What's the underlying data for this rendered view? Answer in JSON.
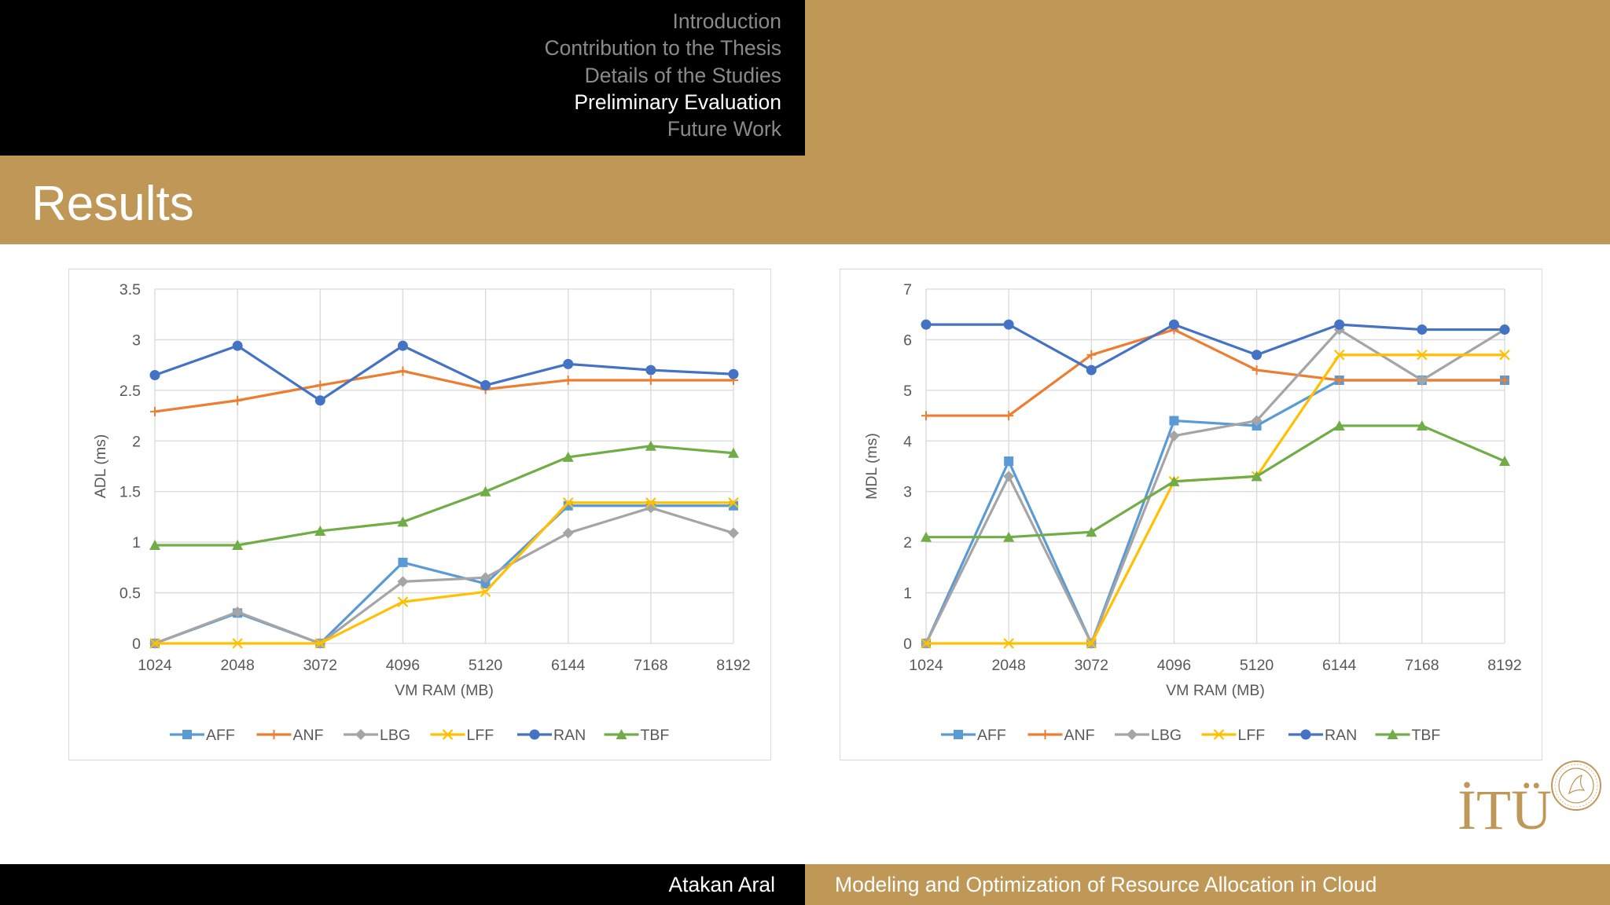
{
  "nav": {
    "items": [
      {
        "label": "Introduction",
        "active": false
      },
      {
        "label": "Contribution to the Thesis",
        "active": false
      },
      {
        "label": "Details of the Studies",
        "active": false
      },
      {
        "label": "Preliminary Evaluation",
        "active": true
      },
      {
        "label": "Future Work",
        "active": false
      }
    ]
  },
  "slide": {
    "title": "Results"
  },
  "footer": {
    "author": "Atakan Aral",
    "talk_title": "Modeling and Optimization of Resource Allocation in Cloud"
  },
  "logo": {
    "text": "İTÜ"
  },
  "colors": {
    "gold": "#bf9858",
    "AFF": "#5b9bd5",
    "ANF": "#ed7d31",
    "LBG": "#a5a5a5",
    "LFF": "#ffc000",
    "RAN": "#4472c4",
    "TBF": "#70ad47"
  },
  "chart_data": [
    {
      "type": "line",
      "title": "",
      "xlabel": "VM RAM (MB)",
      "ylabel": "ADL (ms)",
      "ylim": [
        0,
        3.5
      ],
      "yticks": [
        "0",
        "0.5",
        "1",
        "1.5",
        "2",
        "2.5",
        "3",
        "3.5"
      ],
      "x": [
        "1024",
        "2048",
        "3072",
        "4096",
        "5120",
        "6144",
        "7168",
        "8192"
      ],
      "legend_position": "bottom",
      "series": [
        {
          "name": "AFF",
          "marker": "square",
          "values": [
            0,
            0.3,
            0,
            0.8,
            0.59,
            1.36,
            1.36,
            1.36
          ]
        },
        {
          "name": "ANF",
          "marker": "plus",
          "values": [
            2.29,
            2.4,
            2.55,
            2.69,
            2.51,
            2.6,
            2.6,
            2.6
          ]
        },
        {
          "name": "LBG",
          "marker": "diamond",
          "values": [
            0,
            0.31,
            0,
            0.61,
            0.65,
            1.09,
            1.34,
            1.09
          ]
        },
        {
          "name": "LFF",
          "marker": "x",
          "values": [
            0,
            0,
            0,
            0.41,
            0.51,
            1.39,
            1.39,
            1.39
          ]
        },
        {
          "name": "RAN",
          "marker": "circle",
          "values": [
            2.65,
            2.94,
            2.4,
            2.94,
            2.55,
            2.76,
            2.7,
            2.66
          ]
        },
        {
          "name": "TBF",
          "marker": "triangle",
          "values": [
            0.97,
            0.97,
            1.11,
            1.2,
            1.5,
            1.84,
            1.95,
            1.88
          ]
        }
      ]
    },
    {
      "type": "line",
      "title": "",
      "xlabel": "VM RAM (MB)",
      "ylabel": "MDL (ms)",
      "ylim": [
        0,
        7
      ],
      "yticks": [
        "0",
        "1",
        "2",
        "3",
        "4",
        "5",
        "6",
        "7"
      ],
      "x": [
        "1024",
        "2048",
        "3072",
        "4096",
        "5120",
        "6144",
        "7168",
        "8192"
      ],
      "legend_position": "bottom",
      "series": [
        {
          "name": "AFF",
          "marker": "square",
          "values": [
            0,
            3.6,
            0,
            4.4,
            4.3,
            5.2,
            5.2,
            5.2
          ]
        },
        {
          "name": "ANF",
          "marker": "plus",
          "values": [
            4.5,
            4.5,
            5.7,
            6.2,
            5.4,
            5.2,
            5.2,
            5.2
          ]
        },
        {
          "name": "LBG",
          "marker": "diamond",
          "values": [
            0,
            3.3,
            0,
            4.1,
            4.4,
            6.2,
            5.2,
            6.2
          ]
        },
        {
          "name": "LFF",
          "marker": "x",
          "values": [
            0,
            0,
            0,
            3.2,
            3.3,
            5.7,
            5.7,
            5.7
          ]
        },
        {
          "name": "RAN",
          "marker": "circle",
          "values": [
            6.3,
            6.3,
            5.4,
            6.3,
            5.7,
            6.3,
            6.2,
            6.2
          ]
        },
        {
          "name": "TBF",
          "marker": "triangle",
          "values": [
            2.1,
            2.1,
            2.2,
            3.2,
            3.3,
            4.3,
            4.3,
            3.6
          ]
        }
      ]
    }
  ]
}
